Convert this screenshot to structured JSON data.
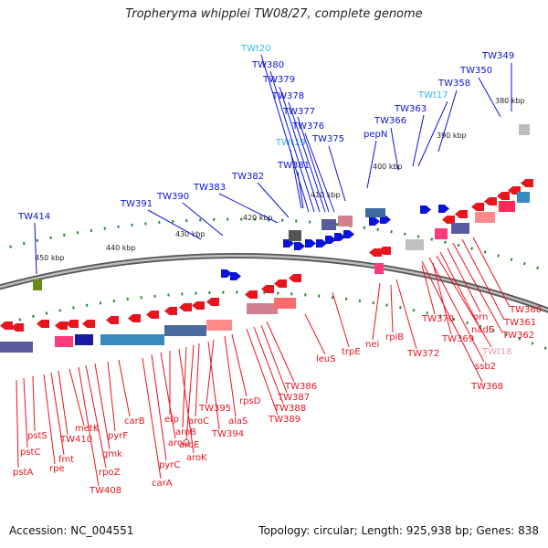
{
  "title": "Tropheryma whipplei TW08/27, complete genome",
  "footer": {
    "accession": "Accession: NC_004551",
    "topology": "Topology: circular; Length: 925,938 bp; Genes: 838"
  },
  "colors": {
    "forward_gene": "#0a14d8",
    "reverse_gene": "#e8141e",
    "trna_forward": "#36b5e8",
    "trna_reverse": "#f09ab0",
    "backbone": "#8a8a8a",
    "tick": "#2a8a2a"
  },
  "kbp_ticks": [
    "380 kbp",
    "390 kbp",
    "400 kbp",
    "410 kbp",
    "420 kbp",
    "430 kbp",
    "440 kbp",
    "450 kbp"
  ],
  "forward_labels": [
    "TWt20",
    "TW380",
    "TW379",
    "TW378",
    "TW377",
    "TW376",
    "TWt19",
    "TW375",
    "TW381",
    "TW382",
    "TW383",
    "TW390",
    "TW391",
    "TW414",
    "pepN",
    "TW366",
    "TW363",
    "TWt17",
    "TW358",
    "TW350",
    "TW349"
  ],
  "reverse_labels": [
    "TW360",
    "TW361",
    "TW362",
    "orn",
    "nadE",
    "TWt18",
    "ssb2",
    "TW368",
    "TW370",
    "TW369",
    "TW372",
    "rpiB",
    "nei",
    "trpE",
    "leuS",
    "TW386",
    "TW387",
    "TW388",
    "TW389",
    "rpsD",
    "alaS",
    "TW395",
    "TW394",
    "aroC",
    "aroE",
    "aroB",
    "aroK",
    "efp",
    "aroQ",
    "pyrC",
    "carA",
    "carB",
    "pyrF",
    "gmk",
    "rpoZ",
    "TW408",
    "metK",
    "TW410",
    "fmt",
    "rpe",
    "pstS",
    "pstC",
    "pstA"
  ]
}
